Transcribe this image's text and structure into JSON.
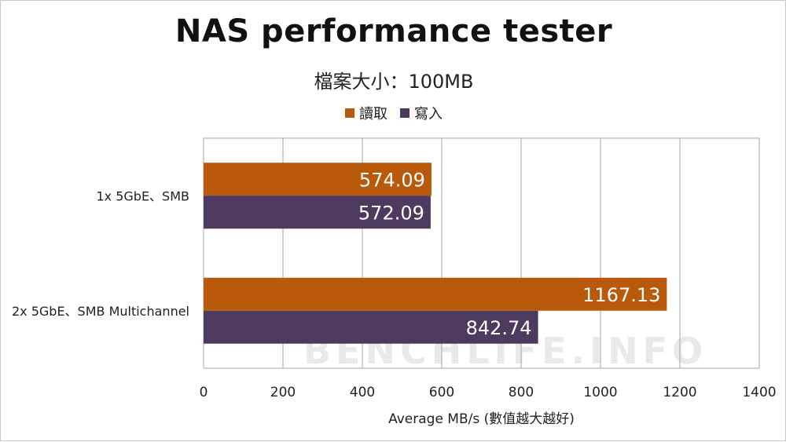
{
  "chart_data": {
    "type": "bar",
    "orientation": "horizontal",
    "title": "NAS performance tester",
    "subtitle": "檔案大小：100MB",
    "categories": [
      "1x 5GbE、SMB",
      "2x 5GbE、SMB Multichannel"
    ],
    "series": [
      {
        "name": "讀取",
        "color": "#b85a0a",
        "values": [
          574.09,
          1167.13
        ]
      },
      {
        "name": "寫入",
        "color": "#4e3a5e",
        "values": [
          572.09,
          842.74
        ]
      }
    ],
    "value_labels": [
      [
        "574.09",
        "1167.13"
      ],
      [
        "572.09",
        "842.74"
      ]
    ],
    "xlabel": "Average MB/s (數值越大越好)",
    "xlim": [
      0,
      1400
    ],
    "xticks": [
      0,
      200,
      400,
      600,
      800,
      1000,
      1200,
      1400
    ],
    "grid": true,
    "legend_position": "top",
    "watermark": "BENCHLIFE.INFO"
  }
}
